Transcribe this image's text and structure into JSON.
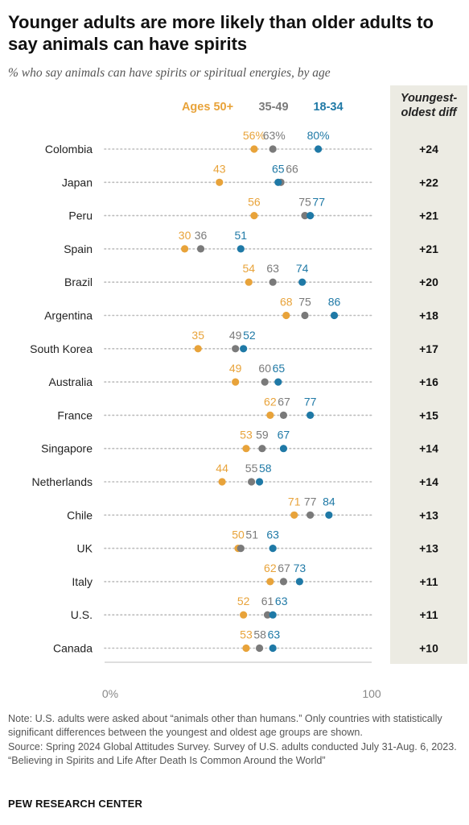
{
  "title": "Younger adults are more likely than older adults to say animals can have spirits",
  "subtitle": "% who say animals can have spirits or spiritual energies, by age",
  "diff_header": "Youngest-oldest diff",
  "colors": {
    "older": "#e8a33a",
    "middle": "#7a7a7a",
    "younger": "#1f79a6",
    "dots": "#bdbdbd"
  },
  "chart_data": {
    "type": "dot",
    "title": "Younger adults are more likely than older adults to say animals can have spirits",
    "xlim": [
      0,
      100
    ],
    "x_ticks": [
      "0%",
      "100"
    ],
    "series": [
      {
        "name": "Ages 50+",
        "key": "older"
      },
      {
        "name": "35-49",
        "key": "middle"
      },
      {
        "name": "18-34",
        "key": "younger"
      }
    ],
    "rows": [
      {
        "country": "Colombia",
        "older": 56,
        "middle": 63,
        "younger": 80,
        "labels": [
          "56%",
          "63%",
          "80%"
        ],
        "diff": "+24"
      },
      {
        "country": "Japan",
        "older": 43,
        "middle": 66,
        "younger": 65,
        "labels": [
          "43",
          "66",
          "65"
        ],
        "diff": "+22"
      },
      {
        "country": "Peru",
        "older": 56,
        "middle": 75,
        "younger": 77,
        "labels": [
          "56",
          "75",
          "77"
        ],
        "diff": "+21"
      },
      {
        "country": "Spain",
        "older": 30,
        "middle": 36,
        "younger": 51,
        "labels": [
          "30",
          "36",
          "51"
        ],
        "diff": "+21"
      },
      {
        "country": "Brazil",
        "older": 54,
        "middle": 63,
        "younger": 74,
        "labels": [
          "54",
          "63",
          "74"
        ],
        "diff": "+20"
      },
      {
        "country": "Argentina",
        "older": 68,
        "middle": 75,
        "younger": 86,
        "labels": [
          "68",
          "75",
          "86"
        ],
        "diff": "+18"
      },
      {
        "country": "South Korea",
        "older": 35,
        "middle": 49,
        "younger": 52,
        "labels": [
          "35",
          "49",
          "52"
        ],
        "diff": "+17"
      },
      {
        "country": "Australia",
        "older": 49,
        "middle": 60,
        "younger": 65,
        "labels": [
          "49",
          "60",
          "65"
        ],
        "diff": "+16"
      },
      {
        "country": "France",
        "older": 62,
        "middle": 67,
        "younger": 77,
        "labels": [
          "62",
          "67",
          "77"
        ],
        "diff": "+15"
      },
      {
        "country": "Singapore",
        "older": 53,
        "middle": 59,
        "younger": 67,
        "labels": [
          "53",
          "59",
          "67"
        ],
        "diff": "+14"
      },
      {
        "country": "Netherlands",
        "older": 44,
        "middle": 55,
        "younger": 58,
        "labels": [
          "44",
          "55",
          "58"
        ],
        "diff": "+14"
      },
      {
        "country": "Chile",
        "older": 71,
        "middle": 77,
        "younger": 84,
        "labels": [
          "71",
          "77",
          "84"
        ],
        "diff": "+13"
      },
      {
        "country": "UK",
        "older": 50,
        "middle": 51,
        "younger": 63,
        "labels": [
          "50",
          "51",
          "63"
        ],
        "diff": "+13"
      },
      {
        "country": "Italy",
        "older": 62,
        "middle": 67,
        "younger": 73,
        "labels": [
          "62",
          "67",
          "73"
        ],
        "diff": "+11"
      },
      {
        "country": "U.S.",
        "older": 52,
        "middle": 61,
        "younger": 63,
        "labels": [
          "52",
          "61",
          "63"
        ],
        "diff": "+11"
      },
      {
        "country": "Canada",
        "older": 53,
        "middle": 58,
        "younger": 63,
        "labels": [
          "53",
          "58",
          "63"
        ],
        "diff": "+10"
      }
    ]
  },
  "notes": [
    "Note: U.S. adults were asked about “animals other than humans.” Only countries with statistically significant differences between the youngest and oldest age groups are shown.",
    "Source: Spring 2024 Global Attitudes Survey. Survey of U.S. adults conducted July 31-Aug. 6, 2023.",
    "“Believing in Spirits and Life After Death Is Common Around the World”"
  ],
  "source_org": "PEW RESEARCH CENTER"
}
